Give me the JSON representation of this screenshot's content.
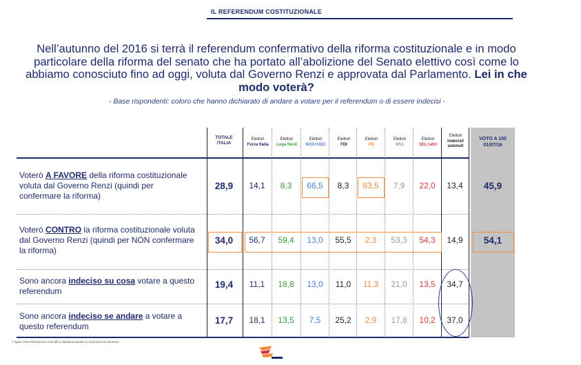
{
  "header": {
    "title": "IL REFERENDUM COSTITUZIONALE"
  },
  "intro": {
    "text": "Nell’autunno del 2016 si terrà il referendum confermativo della riforma costituzionale e in modo particolare della riforma del senato che ha portato all’abolizione del Senato elettivo così come lo abbiamo conosciuto fino ad oggi, voluta dal Governo Renzi e approvata dal Parlamento.",
    "question": "Lei in che modo voterà?",
    "base": "- Base rispondenti: coloro che hanno dichiarato di andare a votare per il referendum o di essere indecisi -"
  },
  "table": {
    "total_header": "TOTALE ITALIA",
    "vote_header": "VOTO A 100 01/07/16",
    "columns": [
      {
        "line1": "Elettori",
        "line2": "Forza Italia",
        "color": "#1f2a6b"
      },
      {
        "line1": "Elettori",
        "line2": "Lega Nord",
        "color": "#3a9a3a"
      },
      {
        "line1": "Elettori",
        "line2": "NCD+UDC",
        "color": "#4a7fd6"
      },
      {
        "line1": "Elettori",
        "line2": "FDI",
        "color": "#222222"
      },
      {
        "line1": "Elettori",
        "line2": "PD",
        "color": "#f08a3c"
      },
      {
        "line1": "Elettori",
        "line2": "M5S",
        "color": "#9a9a9a"
      },
      {
        "line1": "Elettori",
        "line2": "SEL+altri",
        "color": "#d03a3a"
      },
      {
        "line1": "Elettori",
        "line2": "indecisi/ astenuti",
        "color": "#222222"
      }
    ],
    "rows": [
      {
        "pre": "Voterò ",
        "key": "A FAVORE",
        "post": " della riforma costituzionale voluta dal Governo Renzi (quindi per confermare la riforma)",
        "total": "28,9",
        "values": [
          "14,1",
          "8,3",
          "66,5",
          "8,3",
          "83,5",
          "7,9",
          "22,0",
          "13,4"
        ],
        "vote": "45,9"
      },
      {
        "pre": "Voterò ",
        "key": "CONTRO",
        "post": " la riforma costituzionale voluta dal Governo Renzi (quindi per NON confermare la riforma)",
        "total": "34,0",
        "values": [
          "56,7",
          "59,4",
          "13,0",
          "55,5",
          "2,3",
          "53,3",
          "54,3",
          "14,9"
        ],
        "vote": "54,1"
      },
      {
        "pre": "Sono ancora ",
        "key": "indeciso su cosa",
        "post": " votare a questo referendum",
        "total": "19,4",
        "values": [
          "11,1",
          "18,8",
          "13,0",
          "11,0",
          "11,3",
          "21,0",
          "13,5",
          "34,7"
        ],
        "vote": ""
      },
      {
        "pre": "Sono ancora ",
        "key": "indeciso se andare",
        "post": " a votare a questo referendum",
        "total": "17,7",
        "values": [
          "18,1",
          "13,5",
          "7,5",
          "25,2",
          "2,9",
          "17,8",
          "10,2",
          "37,0"
        ],
        "vote": ""
      }
    ]
  },
  "footnote": "7 luglio 2016 Rilevazione scientifico-statistica basata su dichiarazioni anonime",
  "colors": {
    "accent_orange": "#f08a3c",
    "navy": "#1f2a6b",
    "panel_gray": "#c4c4c4"
  }
}
